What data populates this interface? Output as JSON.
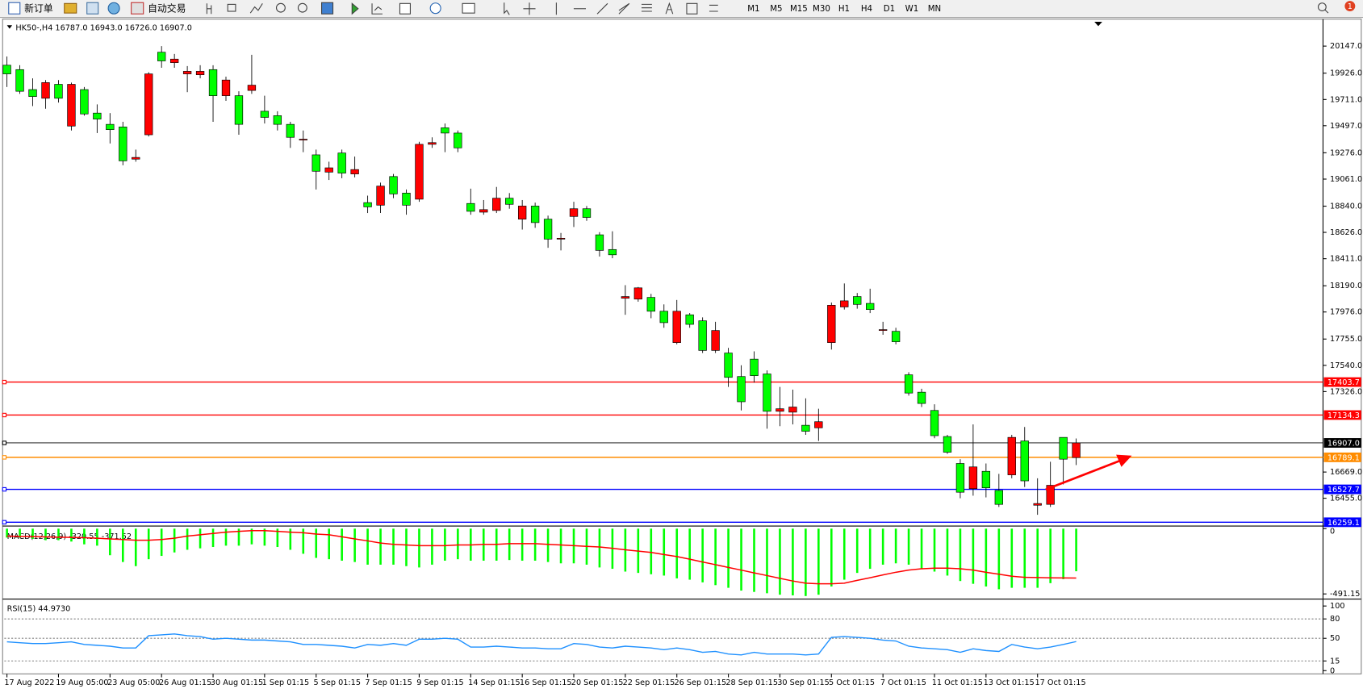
{
  "toolbar": {
    "new_order": "新订单",
    "auto_trading": "自动交易",
    "timeframes": [
      "M1",
      "M5",
      "M15",
      "M30",
      "H1",
      "H4",
      "D1",
      "W1",
      "MN"
    ],
    "notifications": 1
  },
  "chart_data": [
    {
      "type": "candlestick",
      "title": "HK50-,H4  16787.0 16943.0 16726.0 16907.0",
      "colors": {
        "up": "#ff0000",
        "down": "#00ff00"
      },
      "open": [
        19991,
        19955,
        19792,
        19721,
        19835,
        19494,
        19792,
        19600,
        19508,
        19487,
        19224,
        19423,
        20097,
        20012,
        19920,
        19913,
        19955,
        19742,
        19742,
        19785,
        19615,
        19579,
        19508,
        19387,
        19259,
        19118,
        19274,
        19103,
        18869,
        18848,
        19082,
        18947,
        18897,
        19345,
        19480,
        19437,
        18862,
        18791,
        18805,
        18905,
        18734,
        18841,
        18734,
        18571,
        18756,
        18819,
        18606,
        18486,
        18088,
        18081,
        18095,
        17982,
        17726,
        17953,
        17904,
        17662,
        17641,
        17449,
        17591,
        17470,
        17165,
        17158,
        17051,
        17030,
        17726,
        18017,
        18102,
        18046,
        17825,
        17818,
        17463,
        17321,
        17172,
        16959,
        16739,
        16533,
        16675,
        16519,
        16646,
        16923,
        16398,
        16405,
        16952,
        16787
      ],
      "high": [
        20062,
        19991,
        19884,
        19870,
        19870,
        19849,
        19813,
        19671,
        19600,
        19529,
        19302,
        19934,
        20147,
        20083,
        19984,
        19991,
        19991,
        19898,
        19778,
        20076,
        19742,
        19615,
        19529,
        19458,
        19302,
        19203,
        19302,
        19245,
        18926,
        19032,
        19103,
        18976,
        19366,
        19402,
        19515,
        19458,
        18983,
        18890,
        18997,
        18947,
        18890,
        18869,
        18763,
        18621,
        18876,
        18841,
        18628,
        18635,
        18195,
        18180,
        18124,
        18038,
        18074,
        17967,
        17932,
        17896,
        17683,
        17541,
        17655,
        17499,
        17364,
        17342,
        17271,
        17186,
        18053,
        18209,
        18131,
        18166,
        17896,
        17847,
        17484,
        17349,
        17222,
        16973,
        16774,
        17058,
        16739,
        16654,
        16973,
        17037,
        16618,
        16753,
        16952,
        16943
      ],
      "low": [
        19813,
        19757,
        19657,
        19636,
        19686,
        19458,
        19579,
        19437,
        19352,
        19174,
        19203,
        19409,
        19970,
        19970,
        19771,
        19884,
        19529,
        19700,
        19423,
        19757,
        19515,
        19458,
        19316,
        19281,
        18976,
        19054,
        19068,
        19075,
        18784,
        18784,
        18905,
        18770,
        18876,
        19316,
        19281,
        19281,
        18770,
        18770,
        18784,
        18819,
        18649,
        18663,
        18500,
        18479,
        18670,
        18720,
        18429,
        18415,
        17953,
        18060,
        17925,
        17847,
        17712,
        17847,
        17641,
        17641,
        17364,
        17172,
        17399,
        17023,
        17044,
        17058,
        16973,
        16923,
        17669,
        17996,
        18003,
        17967,
        17790,
        17712,
        17293,
        17200,
        16945,
        16817,
        16455,
        16476,
        16462,
        16384,
        16618,
        16547,
        16320,
        16384,
        16568,
        16726
      ],
      "close": [
        19920,
        19778,
        19735,
        19849,
        19721,
        19835,
        19593,
        19551,
        19465,
        19210,
        19238,
        19920,
        20026,
        20041,
        19941,
        19941,
        19742,
        19870,
        19508,
        19828,
        19565,
        19508,
        19402,
        19387,
        19125,
        19153,
        19110,
        19139,
        18834,
        19004,
        18940,
        18848,
        19345,
        19359,
        19437,
        19316,
        18798,
        18812,
        18905,
        18855,
        18841,
        18706,
        18571,
        18578,
        18819,
        18748,
        18479,
        18443,
        18102,
        18173,
        17982,
        17889,
        17982,
        17875,
        17662,
        17825,
        17442,
        17243,
        17456,
        17165,
        17186,
        17200,
        17002,
        17080,
        18031,
        18067,
        18038,
        17996,
        17832,
        17733,
        17314,
        17229,
        16966,
        16831,
        16504,
        16711,
        16540,
        16405,
        16952,
        16597,
        16412,
        16561,
        16774,
        16907
      ],
      "ylim": [
        16228,
        20353
      ],
      "yticks": [
        {
          "value": 20147,
          "label": "20147.0"
        },
        {
          "value": 19926,
          "label": "19926.0"
        },
        {
          "value": 19711,
          "label": "19711.0"
        },
        {
          "value": 19497,
          "label": "19497.0"
        },
        {
          "value": 19276,
          "label": "19276.0"
        },
        {
          "value": 19061,
          "label": "19061.0"
        },
        {
          "value": 18840,
          "label": "18840.0"
        },
        {
          "value": 18626,
          "label": "18626.0"
        },
        {
          "value": 18411,
          "label": "18411.0"
        },
        {
          "value": 18190,
          "label": "18190.0"
        },
        {
          "value": 17976,
          "label": "17976.0"
        },
        {
          "value": 17755,
          "label": "17755.0"
        },
        {
          "value": 17540,
          "label": "17540.0"
        },
        {
          "value": 17326,
          "label": "17326.0"
        },
        {
          "value": 16669,
          "label": "16669.0"
        },
        {
          "value": 16455,
          "label": "16455.0"
        }
      ],
      "hlines": [
        {
          "value": 17403.7,
          "color": "#ff0000"
        },
        {
          "value": 17134.3,
          "color": "#ff0000"
        },
        {
          "value": 16907,
          "label": "16907.0",
          "color": "#000000"
        },
        {
          "value": 16789.1,
          "color": "#ff8c00"
        },
        {
          "value": 16527.7,
          "color": "#0000ff"
        },
        {
          "value": 16259.1,
          "color": "#0000ff"
        }
      ],
      "xticks": [
        {
          "value": 0,
          "label": "17 Aug 2022"
        },
        {
          "value": 4,
          "label": "19 Aug 05:00"
        },
        {
          "value": 8,
          "label": "23 Aug 05:00"
        },
        {
          "value": 12,
          "label": "26 Aug 01:15"
        },
        {
          "value": 16,
          "label": "30 Aug 01:15"
        },
        {
          "value": 20,
          "label": "1 Sep 01:15"
        },
        {
          "value": 24,
          "label": "5 Sep 01:15"
        },
        {
          "value": 28,
          "label": "7 Sep 01:15"
        },
        {
          "value": 32,
          "label": "9 Sep 01:15"
        },
        {
          "value": 36,
          "label": "14 Sep 01:15"
        },
        {
          "value": 40,
          "label": "16 Sep 01:15"
        },
        {
          "value": 44,
          "label": "20 Sep 01:15"
        },
        {
          "value": 48,
          "label": "22 Sep 01:15"
        },
        {
          "value": 52,
          "label": "26 Sep 01:15"
        },
        {
          "value": 56,
          "label": "28 Sep 01:15"
        },
        {
          "value": 60,
          "label": "30 Sep 01:15"
        },
        {
          "value": 64,
          "label": "5 Oct 01:15"
        },
        {
          "value": 68,
          "label": "7 Oct 01:15"
        },
        {
          "value": 72,
          "label": "11 Oct 01:15"
        },
        {
          "value": 76,
          "label": "13 Oct 01:15"
        },
        {
          "value": 80,
          "label": "17 Oct 01:15"
        }
      ]
    },
    {
      "type": "macd",
      "title": "MACD(12,26,9) -320.55 -371.52",
      "histogram_color": "#00ff00",
      "signal_color": "#ff0000",
      "histogram": [
        -67,
        -67,
        -77,
        -87,
        -87,
        -97,
        -118,
        -128,
        -200,
        -251,
        -282,
        -230,
        -205,
        -179,
        -159,
        -148,
        -138,
        -128,
        -128,
        -118,
        -128,
        -138,
        -159,
        -189,
        -220,
        -230,
        -241,
        -251,
        -271,
        -271,
        -271,
        -282,
        -292,
        -271,
        -241,
        -230,
        -241,
        -241,
        -241,
        -236,
        -241,
        -241,
        -251,
        -261,
        -261,
        -271,
        -292,
        -302,
        -323,
        -333,
        -343,
        -353,
        -374,
        -384,
        -404,
        -425,
        -445,
        -466,
        -476,
        -486,
        -497,
        -502,
        -507,
        -497,
        -435,
        -384,
        -333,
        -302,
        -271,
        -261,
        -271,
        -302,
        -323,
        -353,
        -394,
        -415,
        -435,
        -456,
        -445,
        -445,
        -445,
        -410,
        -380,
        -320.55
      ],
      "signal": [
        -56,
        -58,
        -60,
        -62,
        -64,
        -66,
        -68,
        -72,
        -77,
        -82,
        -87,
        -87,
        -82,
        -72,
        -56,
        -46,
        -36,
        -26,
        -20,
        -15,
        -15,
        -20,
        -26,
        -31,
        -41,
        -46,
        -61,
        -77,
        -92,
        -108,
        -118,
        -123,
        -128,
        -128,
        -128,
        -123,
        -123,
        -118,
        -118,
        -113,
        -113,
        -113,
        -118,
        -123,
        -128,
        -133,
        -138,
        -148,
        -159,
        -169,
        -179,
        -195,
        -210,
        -230,
        -251,
        -271,
        -292,
        -312,
        -333,
        -353,
        -374,
        -394,
        -410,
        -415,
        -415,
        -410,
        -389,
        -369,
        -348,
        -328,
        -312,
        -302,
        -297,
        -297,
        -302,
        -312,
        -328,
        -343,
        -358,
        -366,
        -368,
        -370,
        -371,
        -371.52
      ],
      "ylim": [
        -530,
        13
      ],
      "yticks": [
        0,
        -491.15
      ]
    },
    {
      "type": "rsi",
      "title": "RSI(15) 44.9730",
      "color": "#1e90ff",
      "values": [
        44.6,
        43.2,
        41.9,
        41.9,
        43.2,
        44.6,
        40.5,
        39.2,
        37.8,
        35.1,
        35.1,
        54.1,
        55.4,
        56.8,
        54.1,
        52.7,
        48.6,
        50,
        48.6,
        47.3,
        47.3,
        45.9,
        44.6,
        40.5,
        40.5,
        39.2,
        37.8,
        35.1,
        40.5,
        39.2,
        41.9,
        39.2,
        48.6,
        48.6,
        50,
        48.6,
        36.5,
        36.5,
        37.8,
        36.5,
        35.1,
        35.1,
        33.8,
        33.8,
        41.9,
        40.5,
        36.5,
        35.1,
        37.8,
        36.5,
        35.1,
        32.4,
        35.1,
        32.4,
        28.4,
        29.7,
        25.7,
        24.3,
        28.4,
        25.7,
        25.7,
        25.7,
        24.3,
        25.7,
        51.4,
        52.7,
        51.4,
        50,
        47.3,
        45.9,
        37.8,
        35.1,
        33.8,
        32.4,
        28.4,
        33.8,
        31.1,
        29.7,
        40.5,
        36.5,
        33.8,
        36.5,
        40.5,
        44.973
      ],
      "ylim": [
        -5,
        108
      ],
      "yticks": [
        100,
        80,
        50,
        15,
        0
      ],
      "levels": [
        80,
        50,
        15
      ]
    }
  ]
}
